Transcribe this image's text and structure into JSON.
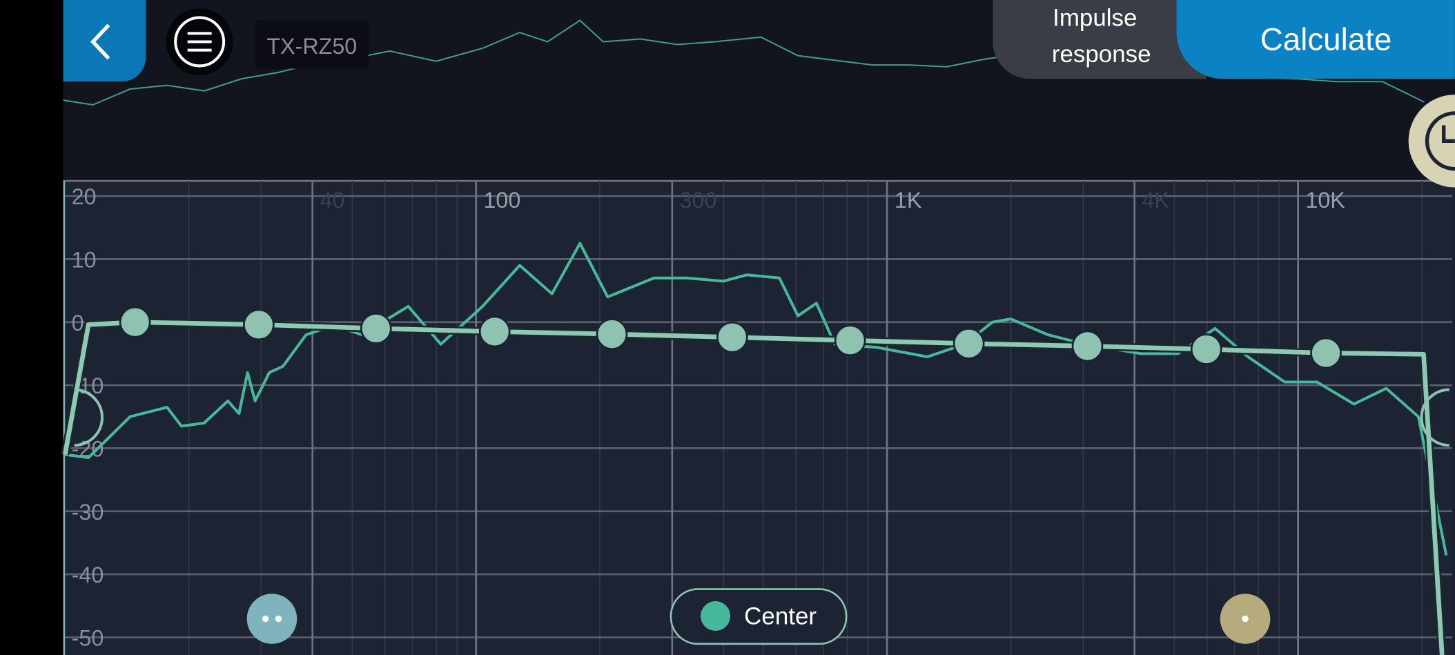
{
  "header": {
    "device": "TX-RZ50",
    "impulse_response": [
      "Impulse",
      "response"
    ],
    "calculate": "Calculate"
  },
  "chart_data": {
    "type": "line",
    "xscale": "log",
    "grid": true,
    "xlim": [
      10,
      23700
    ],
    "ylim": [
      -52.8,
      22.4
    ],
    "xticks": [
      40,
      100,
      300,
      {
        "value": 1000,
        "label": "1K"
      },
      {
        "value": 4000,
        "label": "4K"
      },
      {
        "value": 10000,
        "label": "10K"
      }
    ],
    "yticks": [
      20,
      10,
      0,
      -10,
      -20,
      -30,
      -40,
      -50
    ],
    "series": [
      {
        "name": "Center",
        "color": "#48b89c",
        "x": [
          10,
          11.4,
          14.4,
          17.7,
          19.2,
          21.8,
          24.9,
          26.5,
          27.8,
          29,
          31.4,
          33.9,
          38.6,
          45.1,
          52.7,
          68.4,
          82.1,
          103.7,
          127.7,
          153,
          179,
          209,
          271,
          325,
          400,
          456,
          547,
          607,
          673,
          746,
          943,
          1254,
          1543,
          1805,
          2000,
          2463,
          3028,
          4146,
          5104,
          6283,
          7550,
          9280,
          11120,
          13680,
          16380,
          19620,
          22940
        ],
        "values": [
          -21,
          -21.5,
          -15,
          -13.5,
          -16.5,
          -16,
          -12.5,
          -14.5,
          -8,
          -12.5,
          -8,
          -7,
          -2,
          -0.5,
          -2,
          2.5,
          -3.5,
          2.5,
          9,
          4.5,
          12.5,
          4,
          7,
          7,
          6.5,
          7.5,
          7,
          1,
          3,
          -3.5,
          -4,
          -5.5,
          -3.5,
          0,
          0.5,
          -2,
          -3.5,
          -5,
          -5,
          -1,
          -5.5,
          -9.5,
          -9.5,
          -13,
          -10.5,
          -15,
          -37
        ]
      }
    ],
    "target": {
      "color": "#8fc9b5",
      "x": [
        10,
        11.4,
        14.8,
        29.6,
        57.1,
        111,
        214,
        420,
        813,
        1581,
        3073,
        5980,
        11690,
        20200,
        22400
      ],
      "values": [
        -21,
        -0.4,
        0,
        -0.4,
        -1,
        -1.5,
        -1.9,
        -2.4,
        -2.9,
        -3.4,
        -3.8,
        -4.3,
        -4.9,
        -5.1,
        -52.8
      ]
    },
    "eq_nodes": {
      "color": "#8fc2b0",
      "x": [
        14.8,
        29.6,
        57.1,
        111,
        214,
        420,
        813,
        1581,
        3073,
        5980,
        11690
      ],
      "values": [
        0,
        -0.4,
        -1,
        -1.5,
        -1.9,
        -2.4,
        -2.9,
        -3.4,
        -3.8,
        -4.3,
        -4.9
      ]
    }
  }
}
